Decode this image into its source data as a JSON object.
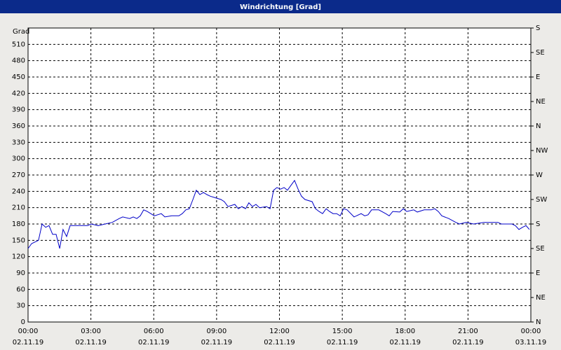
{
  "chart_data": {
    "type": "line",
    "title": "Windrichtung [Grad]",
    "ylabel": "Grad",
    "x": [
      0,
      0.17,
      0.5,
      0.67,
      0.84,
      1.0,
      1.17,
      1.34,
      1.51,
      1.67,
      1.84,
      2.01,
      2.34,
      2.85,
      3.01,
      3.35,
      3.68,
      4.02,
      4.35,
      4.52,
      4.85,
      5.02,
      5.19,
      5.36,
      5.52,
      5.69,
      6.03,
      6.36,
      6.53,
      6.86,
      7.2,
      7.36,
      7.53,
      7.7,
      7.87,
      8.03,
      8.2,
      8.37,
      8.54,
      8.7,
      8.87,
      9.21,
      9.37,
      9.54,
      9.87,
      10.04,
      10.21,
      10.38,
      10.54,
      10.71,
      10.88,
      11.05,
      11.38,
      11.55,
      11.72,
      11.88,
      12.05,
      12.22,
      12.38,
      12.55,
      12.72,
      12.89,
      13.05,
      13.22,
      13.56,
      13.72,
      13.89,
      14.06,
      14.23,
      14.39,
      14.56,
      14.73,
      14.9,
      15.06,
      15.23,
      15.56,
      15.9,
      16.07,
      16.23,
      16.4,
      16.74,
      17.07,
      17.24,
      17.41,
      17.74,
      17.91,
      18.08,
      18.41,
      18.58,
      18.91,
      19.25,
      19.41,
      19.58,
      19.75,
      20.08,
      20.42,
      20.59,
      20.92,
      21.26,
      21.76,
      22.09,
      22.43,
      22.59,
      22.76,
      23.1,
      23.26,
      23.43,
      23.6,
      23.77,
      23.93
    ],
    "series": [
      {
        "color": "#0000c8",
        "values": [
          135,
          144,
          150,
          180,
          174,
          177,
          161,
          161,
          135,
          170,
          157,
          177,
          177,
          177,
          180,
          177,
          180,
          183,
          190,
          193,
          190,
          193,
          190,
          195,
          206,
          203,
          195,
          199,
          193,
          195,
          195,
          199,
          206,
          208,
          225,
          242,
          234,
          238,
          234,
          231,
          229,
          225,
          221,
          212,
          216,
          208,
          212,
          208,
          219,
          212,
          216,
          210,
          212,
          208,
          242,
          247,
          244,
          247,
          242,
          251,
          260,
          244,
          231,
          225,
          221,
          208,
          203,
          199,
          208,
          203,
          199,
          199,
          195,
          208,
          206,
          193,
          199,
          195,
          197,
          206,
          206,
          199,
          195,
          203,
          202,
          208,
          203,
          206,
          202,
          206,
          206,
          208,
          203,
          195,
          190,
          183,
          180,
          183,
          180,
          183,
          183,
          183,
          180,
          180,
          180,
          177,
          170,
          174,
          177,
          170
        ]
      }
    ],
    "xlim": [
      0,
      24
    ],
    "xticks": [
      {
        "value": 0,
        "label": "00:00"
      },
      {
        "value": 3,
        "label": "03:00"
      },
      {
        "value": 6,
        "label": "06:00"
      },
      {
        "value": 9,
        "label": "09:00"
      },
      {
        "value": 12,
        "label": "12:00"
      },
      {
        "value": 15,
        "label": "15:00"
      },
      {
        "value": 18,
        "label": "18:00"
      },
      {
        "value": 21,
        "label": "21:00"
      },
      {
        "value": 24,
        "label": "00:00"
      }
    ],
    "xtick_dates": [
      "02.11.19",
      "02.11.19",
      "02.11.19",
      "02.11.19",
      "02.11.19",
      "02.11.19",
      "02.11.19",
      "02.11.19",
      "03.11.19"
    ],
    "ylim": [
      0,
      540
    ],
    "yticks": [
      0,
      30,
      60,
      90,
      120,
      150,
      180,
      210,
      240,
      270,
      300,
      330,
      360,
      390,
      420,
      450,
      480,
      510
    ],
    "y2lim": [
      0,
      540
    ],
    "y2ticks": [
      {
        "value": 0,
        "label": "N"
      },
      {
        "value": 45,
        "label": "NE"
      },
      {
        "value": 90,
        "label": "E"
      },
      {
        "value": 135,
        "label": "SE"
      },
      {
        "value": 180,
        "label": "S"
      },
      {
        "value": 225,
        "label": "SW"
      },
      {
        "value": 270,
        "label": "W"
      },
      {
        "value": 315,
        "label": "NW"
      },
      {
        "value": 360,
        "label": "N"
      },
      {
        "value": 405,
        "label": "NE"
      },
      {
        "value": 450,
        "label": "E"
      },
      {
        "value": 495,
        "label": "SE"
      },
      {
        "value": 540,
        "label": "S"
      }
    ],
    "grid": true
  }
}
